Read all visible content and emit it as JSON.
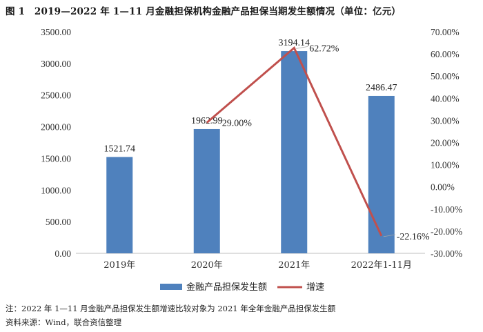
{
  "title": "图 1　2019—2022 年 1—11 月金融担保机构金融产品担保当期发生额情况（单位：亿元）",
  "notes": [
    "注：2022 年 1—11 月金融产品担保发生额增速比较对象为 2021 年全年金融产品担保发生额",
    "资料来源：Wind，联合资信整理"
  ],
  "chart_data": {
    "type": "bar",
    "categories": [
      "2019年",
      "2020年",
      "2021年",
      "2022年1-11月"
    ],
    "series": [
      {
        "name": "金融产品担保发生额",
        "type": "bar",
        "axis": "left",
        "color": "#4f81bd",
        "values": [
          1521.74,
          1962.99,
          3194.14,
          2486.47
        ],
        "labels": [
          "1521.74",
          "1962.99",
          "3194.14",
          "2486.47"
        ]
      },
      {
        "name": "增速",
        "type": "line",
        "axis": "right",
        "color": "#c0504d",
        "values": [
          null,
          29.0,
          62.72,
          -22.16
        ],
        "labels": [
          "",
          "29.00%",
          "62.72%",
          "-22.16%"
        ]
      }
    ],
    "y_left": {
      "min": 0,
      "max": 3500,
      "ticks": [
        "0.00",
        "500.00",
        "1000.00",
        "1500.00",
        "2000.00",
        "2500.00",
        "3000.00",
        "3500.00"
      ]
    },
    "y_right": {
      "min": -30,
      "max": 70,
      "ticks": [
        "-30.00%",
        "-20.00%",
        "-10.00%",
        "0.00%",
        "10.00%",
        "20.00%",
        "30.00%",
        "40.00%",
        "50.00%",
        "60.00%",
        "70.00%"
      ]
    },
    "grid": false,
    "legend": "bottom"
  }
}
